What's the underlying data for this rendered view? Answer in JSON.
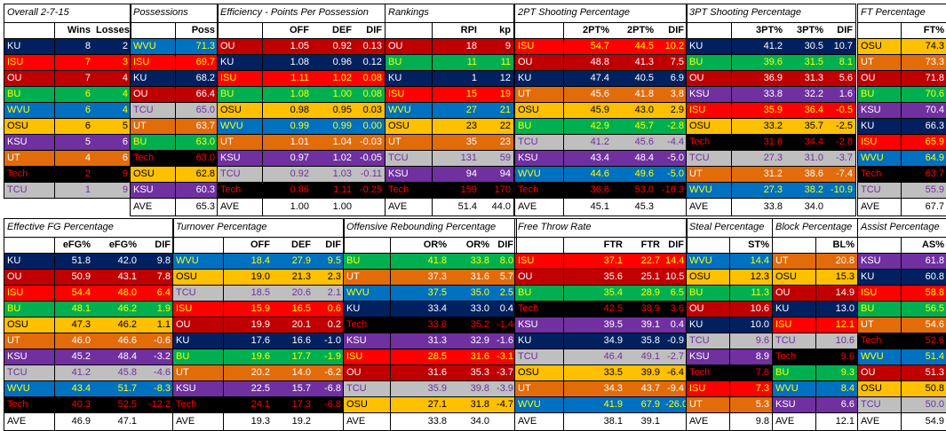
{
  "colors": {
    "KU": {
      "bg": "#002060",
      "fg": "#ffffff"
    },
    "ISU": {
      "bg": "#ff0000",
      "fg": "#ffff00"
    },
    "OU": {
      "bg": "#c00000",
      "fg": "#ffffff"
    },
    "BU": {
      "bg": "#00b050",
      "fg": "#ffff00"
    },
    "WVU": {
      "bg": "#0070c0",
      "fg": "#ffff00"
    },
    "OSU": {
      "bg": "#ffc000",
      "fg": "#000000"
    },
    "KSU": {
      "bg": "#7030a0",
      "fg": "#ffffff"
    },
    "UT": {
      "bg": "#e26b0a",
      "fg": "#ffffff"
    },
    "Tech": {
      "bg": "#000000",
      "fg": "#ff0000"
    },
    "TCU": {
      "bg": "#bfbfbf",
      "fg": "#7030a0"
    },
    "AVE": {
      "bg": "#ffffff",
      "fg": "#000000"
    }
  },
  "tables": [
    {
      "id": "overall",
      "title": "Overall 2-7-15",
      "headers": [
        "",
        "Wins",
        "Losses"
      ],
      "rows": [
        [
          "KU",
          "8",
          "2"
        ],
        [
          "ISU",
          "7",
          "3"
        ],
        [
          "OU",
          "7",
          "4"
        ],
        [
          "BU",
          "6",
          "4"
        ],
        [
          "WVU",
          "6",
          "4"
        ],
        [
          "OSU",
          "6",
          "5"
        ],
        [
          "KSU",
          "5",
          "6"
        ],
        [
          "UT",
          "4",
          "6"
        ],
        [
          "Tech",
          "2",
          "9"
        ],
        [
          "TCU",
          "1",
          "9"
        ]
      ],
      "ave": null
    },
    {
      "id": "possessions",
      "title": "Possessions",
      "headers": [
        "",
        "Poss"
      ],
      "rows": [
        [
          "WVU",
          "71.3"
        ],
        [
          "ISU",
          "69.7"
        ],
        [
          "KU",
          "68.2"
        ],
        [
          "OU",
          "66.4"
        ],
        [
          "TCU",
          "65.0"
        ],
        [
          "UT",
          "63.7"
        ],
        [
          "BU",
          "63.0"
        ],
        [
          "Tech",
          "63.0"
        ],
        [
          "OSU",
          "62.8"
        ],
        [
          "KSU",
          "60.3"
        ]
      ],
      "ave": [
        "AVE",
        "65.3"
      ]
    },
    {
      "id": "efficiency",
      "title": "Efficiency - Points Per Possession",
      "headers": [
        "",
        "OFF",
        "DEF",
        "DIF"
      ],
      "rows": [
        [
          "OU",
          "1.05",
          "0.92",
          "0.13"
        ],
        [
          "KU",
          "1.08",
          "0.96",
          "0.12"
        ],
        [
          "ISU",
          "1.11",
          "1.02",
          "0.08"
        ],
        [
          "BU",
          "1.08",
          "1.00",
          "0.08"
        ],
        [
          "OSU",
          "0.98",
          "0.95",
          "0.03"
        ],
        [
          "WVU",
          "0.99",
          "0.99",
          "0.00"
        ],
        [
          "UT",
          "1.01",
          "1.04",
          "-0.03"
        ],
        [
          "KSU",
          "0.97",
          "1.02",
          "-0.05"
        ],
        [
          "TCU",
          "0.92",
          "1.03",
          "-0.11"
        ],
        [
          "Tech",
          "0.86",
          "1.11",
          "-0.25"
        ]
      ],
      "ave": [
        "AVE",
        "1.00",
        "1.00",
        ""
      ]
    },
    {
      "id": "rankings",
      "title": "Rankings",
      "headers": [
        "",
        "RPI",
        "kp"
      ],
      "rows": [
        [
          "OU",
          "18",
          "9"
        ],
        [
          "BU",
          "11",
          "11"
        ],
        [
          "KU",
          "1",
          "12"
        ],
        [
          "ISU",
          "15",
          "19"
        ],
        [
          "WVU",
          "27",
          "21"
        ],
        [
          "OSU",
          "23",
          "22"
        ],
        [
          "UT",
          "35",
          "23"
        ],
        [
          "TCU",
          "131",
          "59"
        ],
        [
          "KSU",
          "94",
          "94"
        ],
        [
          "Tech",
          "159",
          "170"
        ]
      ],
      "ave": [
        "AVE",
        "51.4",
        "44.0"
      ]
    },
    {
      "id": "pt2",
      "title": "2PT Shooting Percentage",
      "headers": [
        "",
        "2PT%",
        "2PT%",
        "DIF"
      ],
      "rows": [
        [
          "ISU",
          "54.7",
          "44.5",
          "10.2"
        ],
        [
          "OU",
          "48.8",
          "41.3",
          "7.5"
        ],
        [
          "KU",
          "47.4",
          "40.5",
          "6.9"
        ],
        [
          "UT",
          "45.6",
          "41.8",
          "3.8"
        ],
        [
          "OSU",
          "45.9",
          "43.0",
          "2.9"
        ],
        [
          "BU",
          "42.9",
          "45.7",
          "-2.8"
        ],
        [
          "TCU",
          "41.2",
          "45.6",
          "-4.4"
        ],
        [
          "KSU",
          "43.4",
          "48.4",
          "-5.0"
        ],
        [
          "WVU",
          "44.6",
          "49.6",
          "-5.0"
        ],
        [
          "Tech",
          "36.6",
          "53.0",
          "-16.3"
        ]
      ],
      "ave": [
        "AVE",
        "45.1",
        "45.3",
        ""
      ]
    },
    {
      "id": "pt3",
      "title": "3PT Shooting Percentage",
      "headers": [
        "",
        "3PT%",
        "3PT%",
        "DIF"
      ],
      "rows": [
        [
          "KU",
          "41.2",
          "30.5",
          "10.7"
        ],
        [
          "BU",
          "39.6",
          "31.5",
          "8.1"
        ],
        [
          "OU",
          "36.9",
          "31.3",
          "5.6"
        ],
        [
          "KSU",
          "33.8",
          "32.2",
          "1.6"
        ],
        [
          "ISU",
          "35.9",
          "36.4",
          "-0.5"
        ],
        [
          "OSU",
          "33.2",
          "35.7",
          "-2.5"
        ],
        [
          "Tech",
          "31.6",
          "34.4",
          "-2.8"
        ],
        [
          "TCU",
          "27.3",
          "31.0",
          "-3.7"
        ],
        [
          "UT",
          "31.2",
          "38.6",
          "-7.4"
        ],
        [
          "WVU",
          "27.3",
          "38.2",
          "-10.9"
        ]
      ],
      "ave": [
        "AVE",
        "33.8",
        "34.0",
        ""
      ]
    },
    {
      "id": "ft",
      "title": "FT Percentage",
      "headers": [
        "",
        "FT%"
      ],
      "rows": [
        [
          "OSU",
          "74.3"
        ],
        [
          "UT",
          "73.3"
        ],
        [
          "OU",
          "71.8"
        ],
        [
          "BU",
          "70.6"
        ],
        [
          "KSU",
          "70.4"
        ],
        [
          "KU",
          "66.3"
        ],
        [
          "ISU",
          "65.9"
        ],
        [
          "WVU",
          "64.9"
        ],
        [
          "Tech",
          "63.7"
        ],
        [
          "TCU",
          "55.9"
        ]
      ],
      "ave": [
        "AVE",
        "67.7"
      ]
    },
    {
      "id": "efg",
      "title": "Effective FG Percentage",
      "headers": [
        "",
        "eFG%",
        "eFG%",
        "DIF"
      ],
      "rows": [
        [
          "KU",
          "51.8",
          "42.0",
          "9.8"
        ],
        [
          "OU",
          "50.9",
          "43.1",
          "7.8"
        ],
        [
          "ISU",
          "54.4",
          "48.0",
          "6.4"
        ],
        [
          "BU",
          "48.1",
          "46.2",
          "1.9"
        ],
        [
          "OSU",
          "47.3",
          "46.2",
          "1.1"
        ],
        [
          "UT",
          "46.0",
          "46.6",
          "-0.6"
        ],
        [
          "KSU",
          "45.2",
          "48.4",
          "-3.2"
        ],
        [
          "TCU",
          "41.2",
          "45.8",
          "-4.6"
        ],
        [
          "WVU",
          "43.4",
          "51.7",
          "-8.3"
        ],
        [
          "Tech",
          "40.3",
          "52.5",
          "-12.2"
        ]
      ],
      "ave": [
        "AVE",
        "46.9",
        "47.1",
        ""
      ]
    },
    {
      "id": "turnover",
      "title": "Turnover Percentage",
      "headers": [
        "",
        "OFF",
        "DEF",
        "DIF"
      ],
      "rows": [
        [
          "WVU",
          "18.4",
          "27.9",
          "9.5"
        ],
        [
          "OSU",
          "19.0",
          "21.3",
          "2.3"
        ],
        [
          "TCU",
          "18.5",
          "20.6",
          "2.1"
        ],
        [
          "ISU",
          "15.9",
          "16.5",
          "0.6"
        ],
        [
          "OU",
          "19.9",
          "20.1",
          "0.2"
        ],
        [
          "KU",
          "17.6",
          "16.6",
          "-1.0"
        ],
        [
          "BU",
          "19.6",
          "17.7",
          "-1.9"
        ],
        [
          "UT",
          "20.2",
          "14.0",
          "-6.2"
        ],
        [
          "KSU",
          "22.5",
          "15.7",
          "-6.8"
        ],
        [
          "Tech",
          "24.1",
          "17.3",
          "-6.8"
        ]
      ],
      "ave": [
        "AVE",
        "19.3",
        "19.2",
        ""
      ]
    },
    {
      "id": "oreb",
      "title": "Offensive Rebounding Percentage",
      "headers": [
        "",
        "OR%",
        "OR%",
        "DIF"
      ],
      "rows": [
        [
          "BU",
          "41.8",
          "33.8",
          "8.0"
        ],
        [
          "UT",
          "37.3",
          "31.6",
          "5.7"
        ],
        [
          "WVU",
          "37.5",
          "35.0",
          "2.5"
        ],
        [
          "KU",
          "33.4",
          "33.0",
          "0.4"
        ],
        [
          "Tech",
          "33.8",
          "35.2",
          "-1.4"
        ],
        [
          "KSU",
          "31.3",
          "32.9",
          "-1.6"
        ],
        [
          "ISU",
          "28.5",
          "31.6",
          "-3.1"
        ],
        [
          "OU",
          "31.6",
          "35.3",
          "-3.7"
        ],
        [
          "TCU",
          "35.9",
          "39.8",
          "-3.9"
        ],
        [
          "OSU",
          "27.1",
          "31.8",
          "-4.7"
        ]
      ],
      "ave": [
        "AVE",
        "33.8",
        "34.0",
        ""
      ]
    },
    {
      "id": "ftr",
      "title": "Free Throw Rate",
      "headers": [
        "",
        "FTR",
        "FTR",
        "DIF"
      ],
      "rows": [
        [
          "ISU",
          "37.1",
          "22.7",
          "14.4"
        ],
        [
          "OU",
          "35.6",
          "25.1",
          "10.5"
        ],
        [
          "BU",
          "35.4",
          "28.9",
          "6.5"
        ],
        [
          "Tech",
          "42.5",
          "38.9",
          "3.6"
        ],
        [
          "KSU",
          "39.5",
          "39.1",
          "0.4"
        ],
        [
          "KU",
          "34.9",
          "35.8",
          "-0.9"
        ],
        [
          "TCU",
          "46.4",
          "49.1",
          "-2.7"
        ],
        [
          "OSU",
          "33.5",
          "39.9",
          "-6.4"
        ],
        [
          "UT",
          "34.3",
          "43.7",
          "-9.4"
        ],
        [
          "WVU",
          "41.9",
          "67.9",
          "-26.0"
        ]
      ],
      "ave": [
        "AVE",
        "38.1",
        "39.1",
        ""
      ]
    },
    {
      "id": "steal",
      "title": "Steal Percentage",
      "headers": [
        "",
        "ST%"
      ],
      "rows": [
        [
          "WVU",
          "14.4"
        ],
        [
          "OSU",
          "12.3"
        ],
        [
          "BU",
          "11.3"
        ],
        [
          "OU",
          "10.6"
        ],
        [
          "KU",
          "10.0"
        ],
        [
          "TCU",
          "9.6"
        ],
        [
          "KSU",
          "8.9"
        ],
        [
          "Tech",
          "7.8"
        ],
        [
          "ISU",
          "7.3"
        ],
        [
          "UT",
          "5.3"
        ]
      ],
      "ave": [
        "AVE",
        "9.8"
      ]
    },
    {
      "id": "block",
      "title": "Block Percentage",
      "headers": [
        "",
        "BL%"
      ],
      "rows": [
        [
          "UT",
          "20.8"
        ],
        [
          "OSU",
          "15.3"
        ],
        [
          "OU",
          "14.9"
        ],
        [
          "KU",
          "13.0"
        ],
        [
          "ISU",
          "12.1"
        ],
        [
          "TCU",
          "10.6"
        ],
        [
          "Tech",
          "9.6"
        ],
        [
          "BU",
          "9.3"
        ],
        [
          "WVU",
          "8.4"
        ],
        [
          "KSU",
          "6.6"
        ]
      ],
      "ave": [
        "AVE",
        "12.1"
      ]
    },
    {
      "id": "assist",
      "title": "Assist Percentage",
      "headers": [
        "",
        "AS%"
      ],
      "rows": [
        [
          "KSU",
          "61.8"
        ],
        [
          "KU",
          "60.8"
        ],
        [
          "ISU",
          "58.8"
        ],
        [
          "BU",
          "56.5"
        ],
        [
          "UT",
          "54.6"
        ],
        [
          "Tech",
          "52.6"
        ],
        [
          "WVU",
          "51.4"
        ],
        [
          "OU",
          "51.3"
        ],
        [
          "OSU",
          "50.8"
        ],
        [
          "TCU",
          "50.0"
        ]
      ],
      "ave": [
        "AVE",
        "54.9"
      ]
    }
  ]
}
